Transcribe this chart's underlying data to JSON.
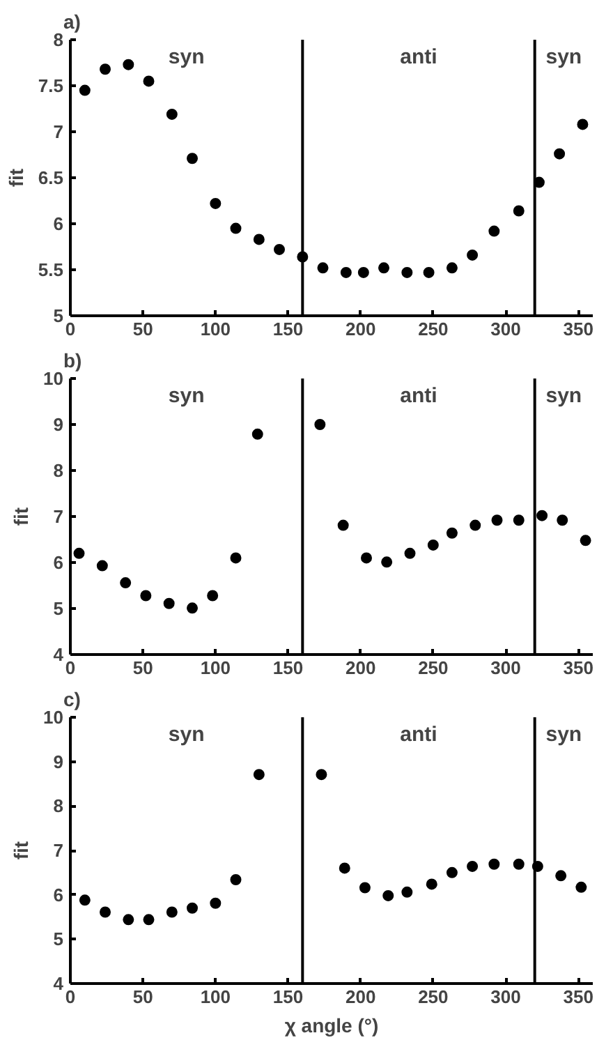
{
  "chart_data": [
    {
      "type": "scatter",
      "title": "a)",
      "ylabel": "fit",
      "marker": "circle",
      "grid": false,
      "xlim": [
        0,
        360
      ],
      "ylim": [
        5,
        8
      ],
      "xticks": [
        0,
        50,
        100,
        150,
        200,
        250,
        300,
        350
      ],
      "yticks": [
        5,
        {
          "value": 5.5,
          "label": "5.5"
        },
        6,
        {
          "value": 6.5,
          "label": "6.5"
        },
        7,
        {
          "value": 7.5,
          "label": "7.5"
        },
        8
      ],
      "ref_lines": [
        {
          "axis": "x",
          "value": 160
        },
        {
          "axis": "x",
          "value": 320
        }
      ],
      "annotations": [
        "syn",
        "anti",
        "syn"
      ],
      "series": [
        {
          "color": "#000000",
          "x": [
            10,
            24,
            40,
            54,
            70,
            84,
            100,
            114,
            130,
            144,
            160,
            174,
            190,
            202,
            216,
            232,
            247,
            263,
            277,
            292,
            309,
            323,
            337,
            353
          ],
          "values": [
            7.45,
            7.68,
            7.73,
            7.55,
            7.19,
            6.71,
            6.22,
            5.95,
            5.83,
            5.72,
            5.64,
            5.52,
            5.47,
            5.47,
            5.52,
            5.47,
            5.47,
            5.52,
            5.66,
            5.92,
            6.14,
            6.45,
            6.76,
            7.08
          ]
        }
      ]
    },
    {
      "type": "scatter",
      "title": "b)",
      "ylabel": "fit",
      "marker": "circle",
      "grid": false,
      "xlim": [
        0,
        360
      ],
      "ylim": [
        4,
        10
      ],
      "xticks": [
        0,
        50,
        100,
        150,
        200,
        250,
        300,
        350
      ],
      "yticks": [
        4,
        5,
        6,
        7,
        8,
        9,
        10
      ],
      "ref_lines": [
        {
          "axis": "x",
          "value": 160
        },
        {
          "axis": "x",
          "value": 320
        }
      ],
      "annotations": [
        "syn",
        "anti",
        "syn"
      ],
      "series": [
        {
          "color": "#000000",
          "x": [
            6,
            22,
            38,
            52,
            68,
            84,
            98,
            114,
            129,
            172,
            188,
            204,
            218,
            234,
            250,
            263,
            279,
            294,
            309,
            325,
            339,
            355
          ],
          "values": [
            6.2,
            5.93,
            5.56,
            5.28,
            5.11,
            5.01,
            5.28,
            6.1,
            8.79,
            9.0,
            6.81,
            6.1,
            6.01,
            6.2,
            6.38,
            6.64,
            6.81,
            6.92,
            6.92,
            7.02,
            6.92,
            6.48
          ]
        }
      ]
    },
    {
      "type": "scatter",
      "title": "c)",
      "ylabel": "fit",
      "xlabel": "χ angle (°)",
      "marker": "circle",
      "grid": false,
      "xlim": [
        0,
        360
      ],
      "ylim": [
        4,
        10
      ],
      "xticks": [
        0,
        50,
        100,
        150,
        200,
        250,
        300,
        350
      ],
      "yticks": [
        4,
        5,
        6,
        7,
        8,
        9,
        10
      ],
      "ref_lines": [
        {
          "axis": "x",
          "value": 160
        },
        {
          "axis": "x",
          "value": 320
        }
      ],
      "annotations": [
        "syn",
        "anti",
        "syn"
      ],
      "series": [
        {
          "color": "#000000",
          "x": [
            10,
            24,
            40,
            54,
            70,
            84,
            100,
            114,
            130,
            173,
            189,
            203,
            219,
            232,
            249,
            263,
            277,
            292,
            309,
            322,
            338,
            352
          ],
          "values": [
            5.88,
            5.61,
            5.44,
            5.44,
            5.61,
            5.7,
            5.81,
            6.34,
            8.71,
            8.71,
            6.6,
            6.16,
            5.98,
            6.06,
            6.24,
            6.5,
            6.64,
            6.69,
            6.69,
            6.64,
            6.43,
            6.17
          ]
        }
      ]
    }
  ]
}
